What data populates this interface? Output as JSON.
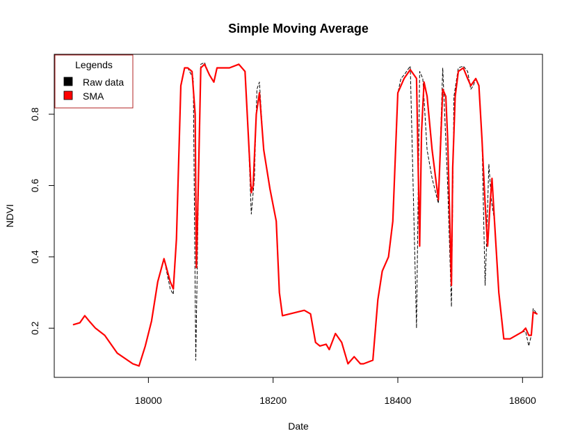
{
  "chart_data": {
    "type": "line",
    "title": "Simple Moving Average",
    "xlabel": "Date",
    "ylabel": "NDVI",
    "xlim": [
      17849,
      18632
    ],
    "ylim": [
      0.062,
      0.968
    ],
    "x_ticks": [
      18000,
      18200,
      18400,
      18600
    ],
    "x_tick_labels": [
      "18000",
      "18200",
      "18400",
      "18600"
    ],
    "y_ticks": [
      0.2,
      0.4,
      0.6,
      0.8
    ],
    "y_tick_labels": [
      "0.2",
      "0.4",
      "0.6",
      "0.8"
    ],
    "grid": false,
    "legend": {
      "title": "Legends",
      "position": "top-left",
      "entries": [
        "Raw data",
        "SMA"
      ]
    },
    "series": [
      {
        "name": "Raw data",
        "color": "#000000",
        "style": "dashed",
        "x": [
          17880,
          17890,
          17898,
          17905,
          17915,
          17930,
          17950,
          17975,
          17985,
          17995,
          18005,
          18015,
          18025,
          18035,
          18040,
          18045,
          18052,
          18058,
          18063,
          18072,
          18076,
          18080,
          18084,
          18090,
          18098,
          18105,
          18110,
          18130,
          18145,
          18155,
          18160,
          18165,
          18170,
          18174,
          18178,
          18185,
          18195,
          18205,
          18210,
          18215,
          18250,
          18260,
          18268,
          18275,
          18285,
          18290,
          18300,
          18310,
          18320,
          18330,
          18340,
          18345,
          18360,
          18368,
          18375,
          18385,
          18392,
          18400,
          18405,
          18410,
          18420,
          18430,
          18435,
          18440,
          18447,
          18455,
          18465,
          18472,
          18480,
          18486,
          18490,
          18497,
          18505,
          18512,
          18517,
          18521,
          18525,
          18530,
          18535,
          18540,
          18542,
          18546,
          18550,
          18555,
          18562,
          18570,
          18580,
          18600,
          18605,
          18610,
          18614,
          18617,
          18623
        ],
        "y": [
          0.21,
          0.215,
          0.235,
          0.22,
          0.2,
          0.18,
          0.13,
          0.1,
          0.094,
          0.15,
          0.22,
          0.33,
          0.395,
          0.31,
          0.295,
          0.45,
          0.88,
          0.93,
          0.93,
          0.9,
          0.11,
          0.56,
          0.94,
          0.945,
          0.91,
          0.89,
          0.93,
          0.93,
          0.94,
          0.92,
          0.75,
          0.52,
          0.62,
          0.87,
          0.89,
          0.7,
          0.59,
          0.5,
          0.3,
          0.235,
          0.25,
          0.24,
          0.16,
          0.15,
          0.155,
          0.14,
          0.185,
          0.16,
          0.1,
          0.12,
          0.1,
          0.1,
          0.11,
          0.28,
          0.36,
          0.4,
          0.5,
          0.86,
          0.9,
          0.91,
          0.935,
          0.2,
          0.92,
          0.9,
          0.7,
          0.62,
          0.55,
          0.93,
          0.6,
          0.26,
          0.85,
          0.93,
          0.935,
          0.92,
          0.87,
          0.88,
          0.9,
          0.88,
          0.73,
          0.32,
          0.42,
          0.66,
          0.56,
          0.5,
          0.3,
          0.17,
          0.17,
          0.19,
          0.19,
          0.15,
          0.18,
          0.255,
          0.24
        ]
      },
      {
        "name": "SMA",
        "color": "#ff0000",
        "style": "solid",
        "x": [
          17880,
          17890,
          17898,
          17905,
          17915,
          17930,
          17950,
          17975,
          17985,
          17995,
          18005,
          18015,
          18025,
          18035,
          18040,
          18045,
          18052,
          18058,
          18063,
          18070,
          18075,
          18077,
          18080,
          18084,
          18090,
          18098,
          18105,
          18110,
          18130,
          18145,
          18155,
          18160,
          18165,
          18168,
          18173,
          18178,
          18185,
          18195,
          18205,
          18210,
          18215,
          18250,
          18260,
          18268,
          18275,
          18285,
          18290,
          18300,
          18310,
          18320,
          18330,
          18340,
          18345,
          18360,
          18368,
          18375,
          18385,
          18392,
          18400,
          18405,
          18410,
          18420,
          18430,
          18435,
          18438,
          18442,
          18447,
          18455,
          18465,
          18472,
          18477,
          18480,
          18486,
          18488,
          18492,
          18497,
          18505,
          18512,
          18517,
          18521,
          18525,
          18530,
          18535,
          18540,
          18544,
          18548,
          18551,
          18555,
          18562,
          18570,
          18580,
          18600,
          18605,
          18610,
          18614,
          18617,
          18623
        ],
        "y": [
          0.21,
          0.215,
          0.235,
          0.22,
          0.2,
          0.18,
          0.13,
          0.1,
          0.094,
          0.15,
          0.22,
          0.33,
          0.395,
          0.33,
          0.31,
          0.45,
          0.88,
          0.93,
          0.93,
          0.92,
          0.8,
          0.37,
          0.6,
          0.93,
          0.94,
          0.91,
          0.89,
          0.93,
          0.93,
          0.94,
          0.92,
          0.75,
          0.58,
          0.6,
          0.8,
          0.86,
          0.7,
          0.59,
          0.5,
          0.3,
          0.235,
          0.25,
          0.24,
          0.16,
          0.15,
          0.155,
          0.14,
          0.185,
          0.16,
          0.1,
          0.12,
          0.1,
          0.1,
          0.11,
          0.28,
          0.36,
          0.4,
          0.5,
          0.86,
          0.88,
          0.9,
          0.925,
          0.9,
          0.43,
          0.75,
          0.89,
          0.85,
          0.7,
          0.56,
          0.87,
          0.85,
          0.73,
          0.32,
          0.65,
          0.85,
          0.92,
          0.93,
          0.9,
          0.88,
          0.89,
          0.9,
          0.88,
          0.73,
          0.55,
          0.43,
          0.55,
          0.62,
          0.5,
          0.3,
          0.17,
          0.17,
          0.19,
          0.2,
          0.18,
          0.18,
          0.245,
          0.24
        ]
      }
    ]
  }
}
